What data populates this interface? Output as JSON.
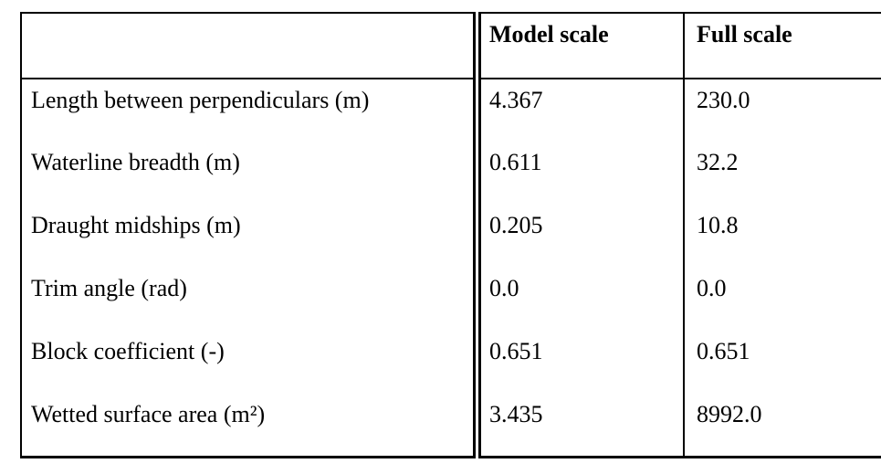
{
  "document": {
    "background_color": "#ffffff",
    "text_color": "#000000"
  },
  "table": {
    "columns": [
      {
        "label": ""
      },
      {
        "label": "Model scale"
      },
      {
        "label": "Full scale"
      }
    ],
    "rows": [
      {
        "label": "Length between perpendiculars (m)",
        "model_scale": "4.367",
        "full_scale": "230.0"
      },
      {
        "label": "Waterline breadth (m)",
        "model_scale": "0.611",
        "full_scale": "32.2"
      },
      {
        "label": "Draught midships (m)",
        "model_scale": "0.205",
        "full_scale": "10.8"
      },
      {
        "label": "Trim angle (rad)",
        "model_scale": "0.0",
        "full_scale": "0.0"
      },
      {
        "label": "Block coefficient (-)",
        "model_scale": "0.651",
        "full_scale": "0.651"
      },
      {
        "label": "Wetted surface area (m²)",
        "model_scale": "3.435",
        "full_scale": "8992.0"
      }
    ]
  }
}
